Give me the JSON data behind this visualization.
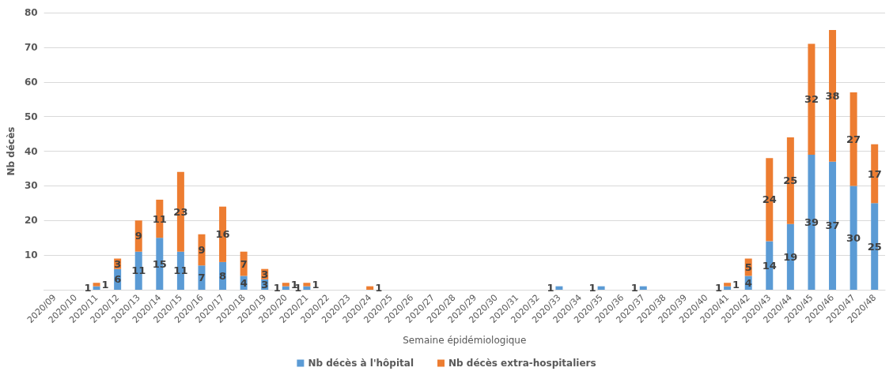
{
  "chart_data": {
    "type": "bar",
    "stacked": true,
    "xlabel": "Semaine épidémiologique",
    "ylabel": "Nb décès",
    "categories": [
      "2020/09",
      "2020/10",
      "2020/11",
      "2020/12",
      "2020/13",
      "2020/14",
      "2020/15",
      "2020/16",
      "2020/17",
      "2020/18",
      "2020/19",
      "2020/20",
      "2020/21",
      "2020/22",
      "2020/23",
      "2020/24",
      "2020/25",
      "2020/26",
      "2020/27",
      "2020/28",
      "2020/29",
      "2020/30",
      "2020/31",
      "2020/32",
      "2020/33",
      "2020/34",
      "2020/35",
      "2020/36",
      "2020/37",
      "2020/38",
      "2020/39",
      "2020/40",
      "2020/41",
      "2020/42",
      "2020/43",
      "2020/44",
      "2020/45",
      "2020/46",
      "2020/47",
      "2020/48"
    ],
    "series": [
      {
        "name": "Nb décès à l'hôpital",
        "color": "#5b9bd5",
        "values": [
          null,
          null,
          1,
          6,
          11,
          15,
          11,
          7,
          8,
          4,
          3,
          1,
          1,
          null,
          null,
          null,
          null,
          null,
          null,
          null,
          null,
          null,
          null,
          null,
          1,
          null,
          1,
          null,
          1,
          null,
          null,
          null,
          1,
          4,
          14,
          19,
          39,
          37,
          30,
          25
        ]
      },
      {
        "name": "Nb décès extra-hospitaliers",
        "color": "#ed7d31",
        "values": [
          null,
          null,
          1,
          3,
          9,
          11,
          23,
          9,
          16,
          7,
          3,
          1,
          1,
          null,
          null,
          1,
          null,
          null,
          null,
          null,
          null,
          null,
          null,
          null,
          null,
          null,
          null,
          null,
          null,
          null,
          null,
          null,
          1,
          5,
          24,
          25,
          32,
          38,
          27,
          17
        ]
      }
    ],
    "ylim": [
      0,
      80
    ],
    "yticks": [
      {
        "value": 0,
        "label": null
      },
      10,
      20,
      30,
      40,
      50,
      60,
      70,
      80
    ],
    "grid": "y",
    "legend": "bottom",
    "data_labels": true
  }
}
